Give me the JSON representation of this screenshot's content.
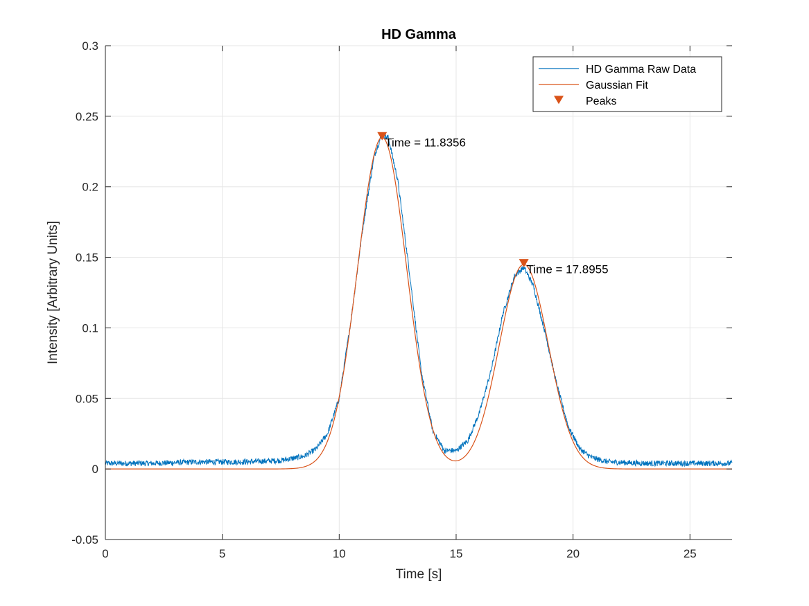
{
  "chart_data": {
    "type": "line",
    "title": "HD Gamma",
    "xlabel": "Time [s]",
    "ylabel": "Intensity [Arbitrary Units]",
    "xlim": [
      0,
      26.8
    ],
    "ylim": [
      -0.05,
      0.3
    ],
    "xticks": [
      0,
      5,
      10,
      15,
      20,
      25
    ],
    "xtick_labels": [
      "0",
      "5",
      "10",
      "15",
      "20",
      "25"
    ],
    "yticks": [
      -0.05,
      0,
      0.05,
      0.1,
      0.15,
      0.2,
      0.25,
      0.3
    ],
    "ytick_labels": [
      "-0.05",
      "0",
      "0.05",
      "0.1",
      "0.15",
      "0.2",
      "0.25",
      "0.3"
    ],
    "grid": true,
    "legend_position": "top-right",
    "series": [
      {
        "name": "HD Gamma Raw Data",
        "color": "#0072BD",
        "x": [
          0,
          2,
          4,
          6,
          7.5,
          8.5,
          9.0,
          9.5,
          10.0,
          10.5,
          11.0,
          11.5,
          11.8,
          12.1,
          12.5,
          13.0,
          13.5,
          14.0,
          14.5,
          15.0,
          15.5,
          16.0,
          16.5,
          17.0,
          17.5,
          17.9,
          18.3,
          18.8,
          19.3,
          19.8,
          20.3,
          20.8,
          21.5,
          23,
          25,
          26.8
        ],
        "y": [
          0.004,
          0.004,
          0.005,
          0.005,
          0.006,
          0.009,
          0.014,
          0.025,
          0.05,
          0.105,
          0.17,
          0.222,
          0.236,
          0.235,
          0.205,
          0.14,
          0.07,
          0.027,
          0.013,
          0.013,
          0.02,
          0.04,
          0.07,
          0.11,
          0.137,
          0.143,
          0.13,
          0.097,
          0.06,
          0.03,
          0.014,
          0.008,
          0.005,
          0.004,
          0.004,
          0.004
        ],
        "noise_amplitude": 0.002
      },
      {
        "name": "Gaussian Fit",
        "color": "#D95319",
        "model": "gaussian_sum",
        "components": [
          {
            "amplitude": 0.235,
            "center": 11.8356,
            "sigma": 1.05
          },
          {
            "amplitude": 0.145,
            "center": 17.8955,
            "sigma": 1.05
          }
        ]
      },
      {
        "name": "Peaks",
        "color": "#D95319",
        "marker": "triangle-down",
        "x": [
          11.8356,
          17.8955
        ],
        "y": [
          0.236,
          0.146
        ]
      }
    ],
    "annotations": [
      {
        "text": "Time = 11.8356",
        "x": 11.8356,
        "y": 0.2355
      },
      {
        "text": "Time = 17.8955",
        "x": 17.8955,
        "y": 0.1455
      }
    ]
  }
}
